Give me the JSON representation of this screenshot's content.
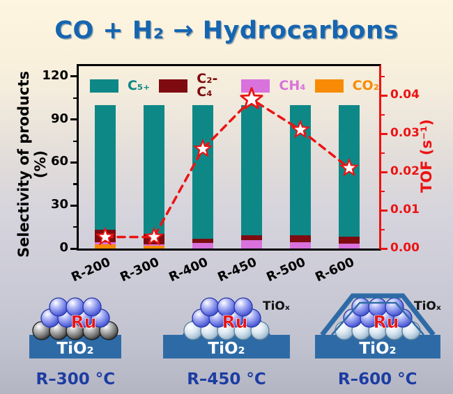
{
  "title": {
    "text": "CO + H₂ → Hydrocarbons"
  },
  "chart_data": {
    "type": "bar+line",
    "categories": [
      "R-200",
      "R-300",
      "R-400",
      "R-450",
      "R-500",
      "R-600"
    ],
    "stack_series": [
      {
        "name": "CO₂",
        "color": "#f88b06",
        "values": [
          3,
          2,
          0,
          0,
          0,
          0
        ]
      },
      {
        "name": "CH₄",
        "color": "#d972dc",
        "values": [
          1.5,
          1,
          4,
          6,
          4.5,
          3.5
        ]
      },
      {
        "name": "C₂-C₄",
        "color": "#7e0b10",
        "values": [
          8.5,
          7,
          3,
          3,
          4.5,
          5
        ]
      },
      {
        "name": "C₅₊",
        "color": "#0e8887",
        "values": [
          87,
          90,
          93,
          91,
          91,
          91.5
        ]
      }
    ],
    "legend_order": [
      3,
      2,
      1,
      0
    ],
    "line_series": {
      "name": "TOF",
      "color": "#ec1313",
      "values": [
        0.003,
        0.003,
        0.026,
        0.039,
        0.031,
        0.021
      ],
      "peak_index": 3
    },
    "left_axis": {
      "label": "Selectivity of products (%)",
      "ticks": [
        0,
        30,
        60,
        90,
        120
      ],
      "minor_ticks": [
        15,
        45,
        75,
        105
      ]
    },
    "right_axis": {
      "label": "TOF (s⁻¹)",
      "ticks": [
        "0.00",
        "0.01",
        "0.02",
        "0.03",
        "0.04"
      ],
      "tick_values": [
        0,
        0.01,
        0.02,
        0.03,
        0.04
      ],
      "minor_tick_values": [
        0.005,
        0.015,
        0.025,
        0.035,
        0.045
      ]
    },
    "grid": false,
    "legend_position": "top-inside"
  },
  "schematics": {
    "items": [
      {
        "caption": "R–300 °C",
        "variant": "bare",
        "substrate": "TiO₂",
        "particle": "Ru",
        "overlayer": ""
      },
      {
        "caption": "R–450 °C",
        "variant": "partial",
        "substrate": "TiO₂",
        "particle": "Ru",
        "overlayer": "TiOₓ"
      },
      {
        "caption": "R–600 °C",
        "variant": "covered",
        "substrate": "TiO₂",
        "particle": "Ru",
        "overlayer": "TiOₓ"
      }
    ]
  }
}
